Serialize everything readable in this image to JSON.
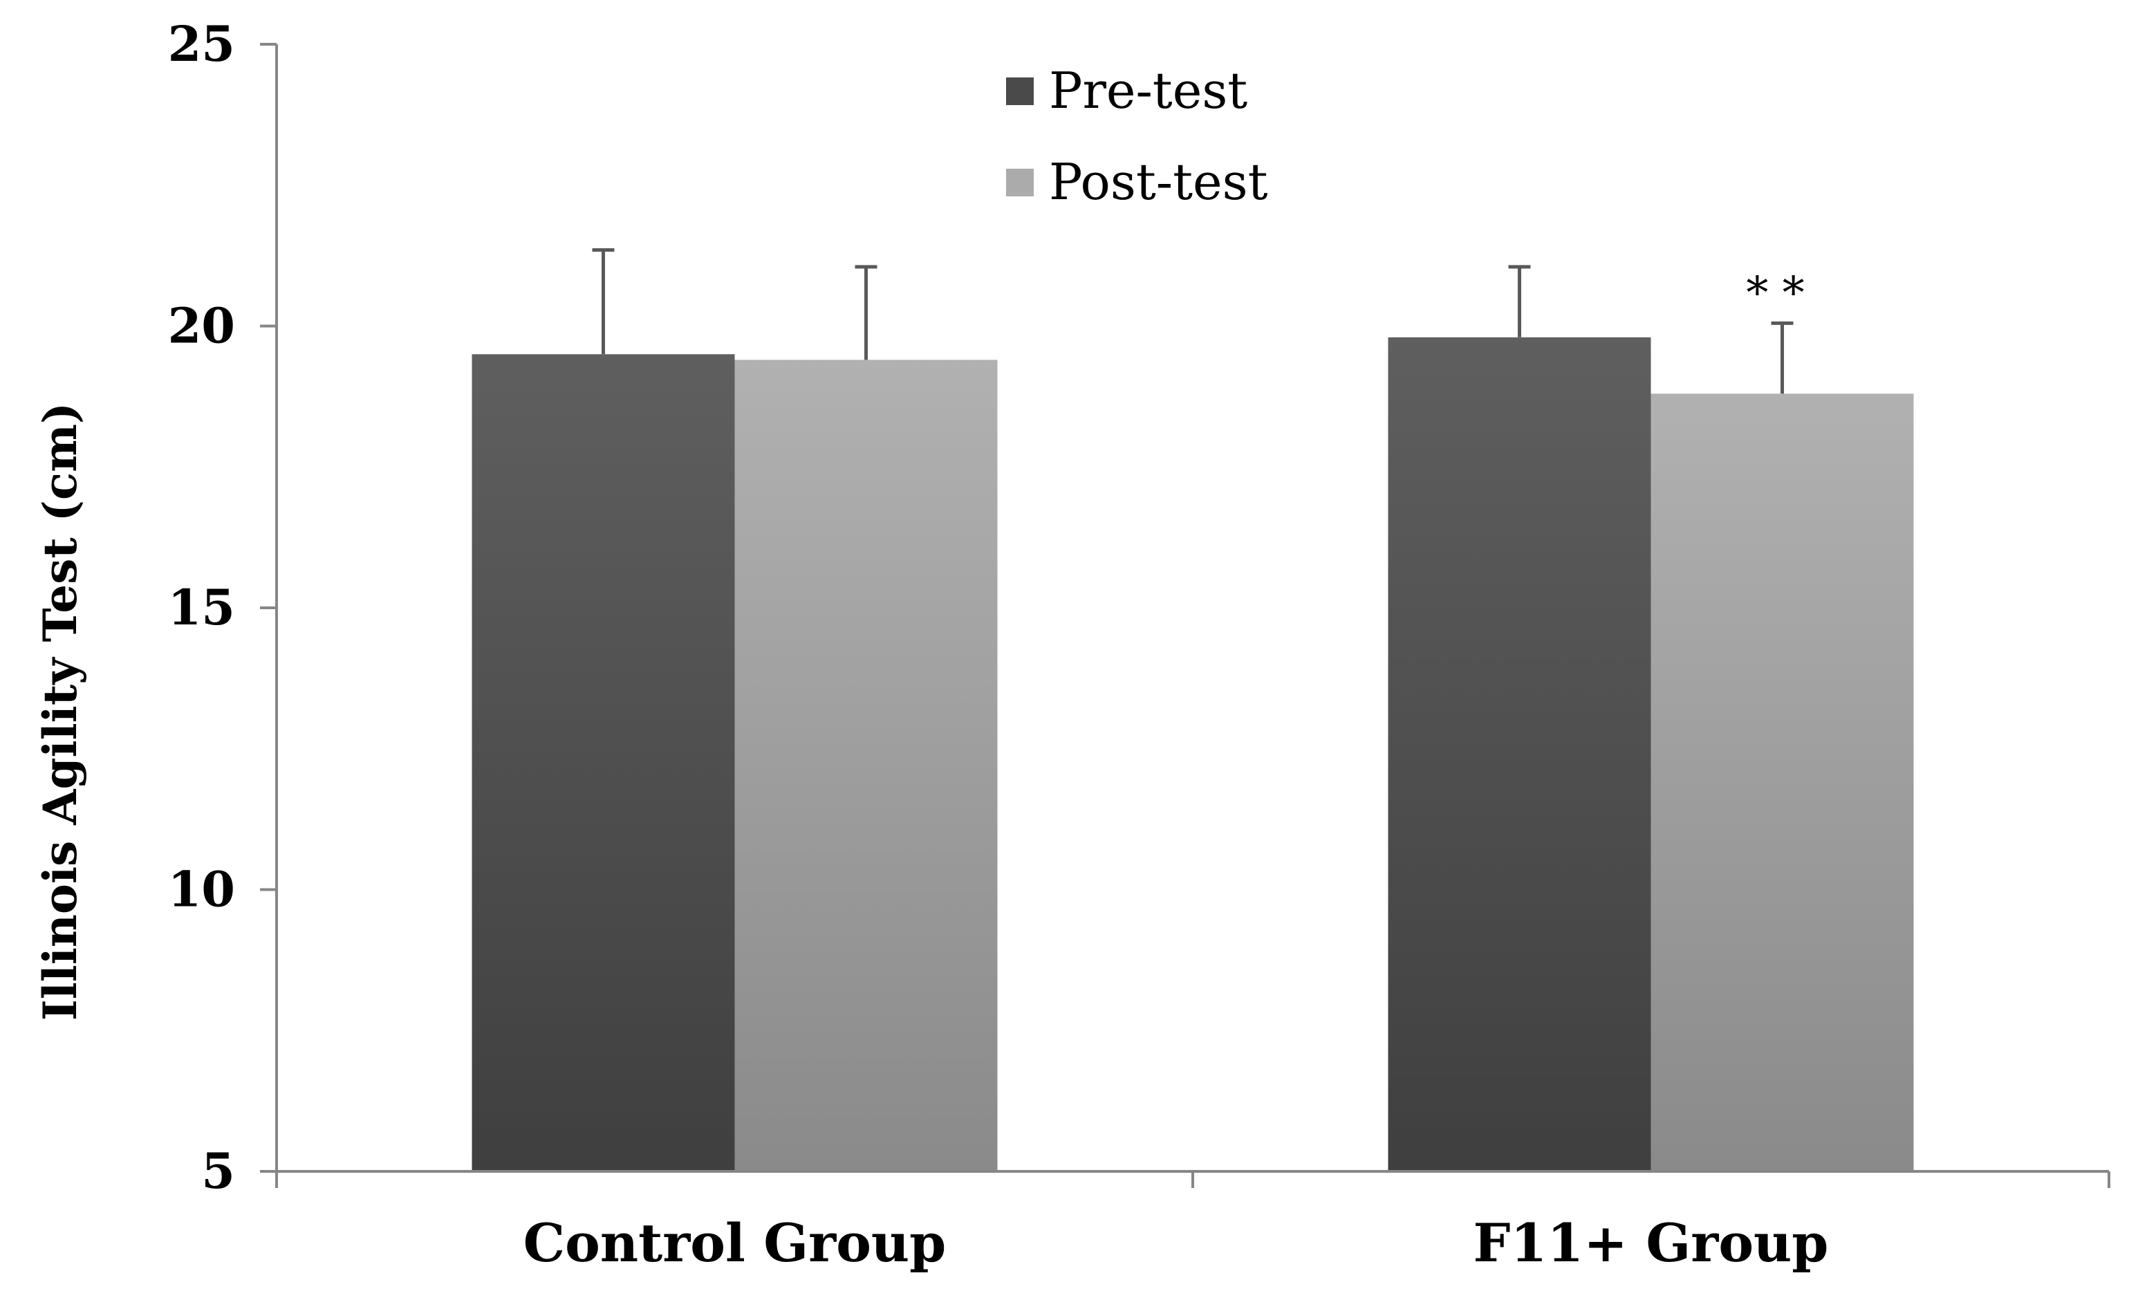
{
  "chart_data": {
    "type": "bar",
    "categories": [
      "Control Group",
      "F11+ Group"
    ],
    "series": [
      {
        "name": "Pre-test",
        "values": [
          19.5,
          19.8
        ],
        "error": [
          1.85,
          1.25
        ],
        "color": "#4d4d4d"
      },
      {
        "name": "Post-test",
        "values": [
          19.4,
          18.8
        ],
        "error": [
          1.65,
          1.25
        ],
        "color": "#a3a3a3"
      }
    ],
    "ylabel": "Illinois Agility Test (cm)",
    "xlabel": "",
    "ylim": [
      5,
      25
    ],
    "yticks": [
      5,
      10,
      15,
      20,
      25
    ],
    "ytick_labels": [
      "5",
      "10",
      "15",
      "20",
      "25"
    ],
    "grid": false,
    "legend": "top-center",
    "annotations": [
      {
        "text": "* *",
        "category": "F11+ Group",
        "series": "Post-test"
      }
    ]
  }
}
